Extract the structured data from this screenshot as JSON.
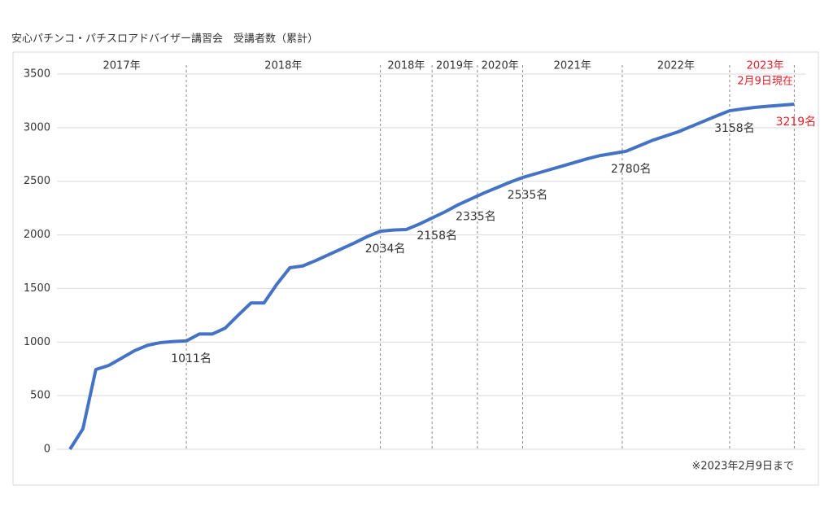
{
  "chart_data": {
    "type": "line",
    "title": "安心パチンコ・パチスロアドバイザー講習会　受講者数（累計）",
    "note": "※2023年2月9日まで",
    "periods": [
      "2017年",
      "2018年",
      "2018年",
      "2019年",
      "2020年",
      "2021年",
      "2022年",
      [
        "2023年",
        "2月9日現在"
      ]
    ],
    "highlight_color": "#e8202a",
    "categories": [
      null,
      null,
      null,
      null,
      null,
      null,
      null,
      null,
      null,
      null,
      null,
      null,
      null,
      null,
      null,
      null,
      null,
      null,
      null,
      null,
      null,
      null,
      null,
      null,
      null,
      null,
      null,
      null,
      null,
      null,
      null,
      null,
      null,
      null,
      null,
      null,
      null,
      null,
      null,
      null,
      null,
      null,
      null,
      null,
      null,
      null,
      null,
      null,
      null,
      null,
      null,
      null,
      null,
      null,
      null,
      null,
      null
    ],
    "series": [
      {
        "name": "受講者数",
        "color": "#4472c4",
        "values": [
          0,
          190,
          744,
          782,
          850,
          920,
          970,
          995,
          1005,
          1011,
          1075,
          1075,
          1130,
          1250,
          1365,
          1365,
          1540,
          1693,
          1710,
          1760,
          1815,
          1870,
          1925,
          1985,
          2034,
          2045,
          2050,
          2100,
          2158,
          2215,
          2280,
          2335,
          2390,
          2440,
          2490,
          2535,
          2570,
          2605,
          2640,
          2675,
          2710,
          2740,
          2760,
          2780,
          2830,
          2880,
          2920,
          2960,
          3010,
          3060,
          3110,
          3158,
          3175,
          3190,
          3200,
          3210,
          3219
        ],
        "value_labels": [
          null,
          null,
          null,
          null,
          null,
          null,
          null,
          null,
          null,
          "1011名",
          null,
          null,
          null,
          null,
          null,
          null,
          null,
          null,
          null,
          null,
          null,
          null,
          null,
          null,
          "2034名",
          null,
          null,
          null,
          "2158名",
          null,
          null,
          "2335名",
          null,
          null,
          null,
          "2535名",
          null,
          null,
          null,
          null,
          null,
          null,
          null,
          "2780名",
          null,
          null,
          null,
          null,
          null,
          null,
          null,
          "3158名",
          null,
          null,
          null,
          null,
          "3219名"
        ]
      }
    ],
    "ylim": [
      0,
      3500
    ],
    "yticks": [
      0,
      500,
      1000,
      1500,
      2000,
      2500,
      3000,
      3500
    ],
    "grid": true
  }
}
